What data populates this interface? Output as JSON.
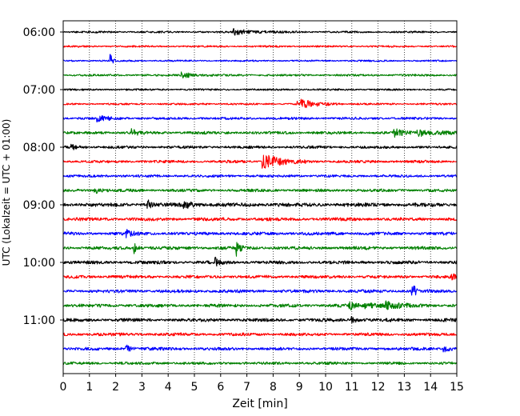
{
  "chart_data": {
    "type": "line",
    "title": "",
    "xlabel": "Zeit  [min]",
    "ylabel": "UTC (Lokalzeit = UTC + 01:00)",
    "xlim": [
      0,
      15
    ],
    "x_ticks": [
      0,
      1,
      2,
      3,
      4,
      5,
      6,
      7,
      8,
      9,
      10,
      11,
      12,
      13,
      14,
      15
    ],
    "x_tick_labels": [
      "0",
      "1",
      "2",
      "3",
      "4",
      "5",
      "6",
      "7",
      "8",
      "9",
      "10",
      "11",
      "12",
      "13",
      "14",
      "15"
    ],
    "y_tick_labels": [
      "06:00",
      "07:00",
      "08:00",
      "09:00",
      "10:00",
      "11:00"
    ],
    "x_grid": true,
    "grid_style": "dotted",
    "series_colors": [
      "#000000",
      "#ff0000",
      "#0000ff",
      "#008000"
    ],
    "traces": [
      {
        "start": "06:00",
        "color": "#000000",
        "noise": 0.9,
        "events": [
          {
            "x": 6.5,
            "amp": 3.5,
            "dur": 0.8
          }
        ]
      },
      {
        "start": "06:15",
        "color": "#ff0000",
        "noise": 0.9,
        "events": []
      },
      {
        "start": "06:30",
        "color": "#0000ff",
        "noise": 0.8,
        "events": [
          {
            "x": 1.8,
            "amp": 8,
            "dur": 0.08
          }
        ]
      },
      {
        "start": "06:45",
        "color": "#008000",
        "noise": 1.0,
        "events": [
          {
            "x": 4.5,
            "amp": 4,
            "dur": 0.4
          }
        ]
      },
      {
        "start": "07:00",
        "color": "#000000",
        "noise": 0.9,
        "events": []
      },
      {
        "start": "07:15",
        "color": "#ff0000",
        "noise": 0.9,
        "events": [
          {
            "x": 8.9,
            "amp": 7,
            "dur": 0.6
          }
        ]
      },
      {
        "start": "07:30",
        "color": "#0000ff",
        "noise": 1.2,
        "events": [
          {
            "x": 1.3,
            "amp": 4,
            "dur": 0.4
          }
        ]
      },
      {
        "start": "07:45",
        "color": "#008000",
        "noise": 1.4,
        "events": [
          {
            "x": 2.6,
            "amp": 5,
            "dur": 0.2
          },
          {
            "x": 12.6,
            "amp": 5,
            "dur": 0.3
          },
          {
            "x": 13.5,
            "amp": 4,
            "dur": 0.8
          }
        ]
      },
      {
        "start": "08:00",
        "color": "#000000",
        "noise": 1.3,
        "events": [
          {
            "x": 0.3,
            "amp": 4,
            "dur": 0.2
          }
        ]
      },
      {
        "start": "08:15",
        "color": "#ff0000",
        "noise": 1.3,
        "events": [
          {
            "x": 7.6,
            "amp": 10,
            "dur": 0.6
          }
        ]
      },
      {
        "start": "08:30",
        "color": "#0000ff",
        "noise": 1.3,
        "events": []
      },
      {
        "start": "08:45",
        "color": "#008000",
        "noise": 1.4,
        "events": [
          {
            "x": 1.2,
            "amp": 4,
            "dur": 0.2
          }
        ]
      },
      {
        "start": "09:00",
        "color": "#000000",
        "noise": 1.9,
        "events": [
          {
            "x": 3.2,
            "amp": 7,
            "dur": 0.1
          },
          {
            "x": 4.6,
            "amp": 5,
            "dur": 0.3
          }
        ]
      },
      {
        "start": "09:15",
        "color": "#ff0000",
        "noise": 1.6,
        "events": []
      },
      {
        "start": "09:30",
        "color": "#0000ff",
        "noise": 1.6,
        "events": [
          {
            "x": 2.4,
            "amp": 4,
            "dur": 0.2
          }
        ]
      },
      {
        "start": "09:45",
        "color": "#008000",
        "noise": 1.6,
        "events": [
          {
            "x": 2.7,
            "amp": 9,
            "dur": 0.1
          },
          {
            "x": 6.6,
            "amp": 11,
            "dur": 0.1
          }
        ]
      },
      {
        "start": "10:00",
        "color": "#000000",
        "noise": 1.6,
        "events": [
          {
            "x": 5.8,
            "amp": 5,
            "dur": 0.15
          }
        ]
      },
      {
        "start": "10:15",
        "color": "#ff0000",
        "noise": 1.5,
        "events": [
          {
            "x": 14.8,
            "amp": 4,
            "dur": 0.3
          }
        ]
      },
      {
        "start": "10:30",
        "color": "#0000ff",
        "noise": 1.6,
        "events": [
          {
            "x": 13.3,
            "amp": 20,
            "dur": 0.07
          }
        ]
      },
      {
        "start": "10:45",
        "color": "#008000",
        "noise": 1.6,
        "events": [
          {
            "x": 10.9,
            "amp": 5,
            "dur": 0.2
          },
          {
            "x": 12.3,
            "amp": 5,
            "dur": 0.3
          },
          {
            "x": 11.5,
            "amp": 3,
            "dur": 0.9
          }
        ]
      },
      {
        "start": "11:00",
        "color": "#000000",
        "noise": 1.6,
        "events": [
          {
            "x": 11.0,
            "amp": 4,
            "dur": 0.2
          }
        ]
      },
      {
        "start": "11:15",
        "color": "#ff0000",
        "noise": 1.5,
        "events": []
      },
      {
        "start": "11:30",
        "color": "#0000ff",
        "noise": 1.5,
        "events": [
          {
            "x": 2.4,
            "amp": 5,
            "dur": 0.15
          },
          {
            "x": 14.5,
            "amp": 4,
            "dur": 0.2
          }
        ]
      },
      {
        "start": "11:45",
        "color": "#008000",
        "noise": 1.3,
        "events": []
      }
    ]
  }
}
